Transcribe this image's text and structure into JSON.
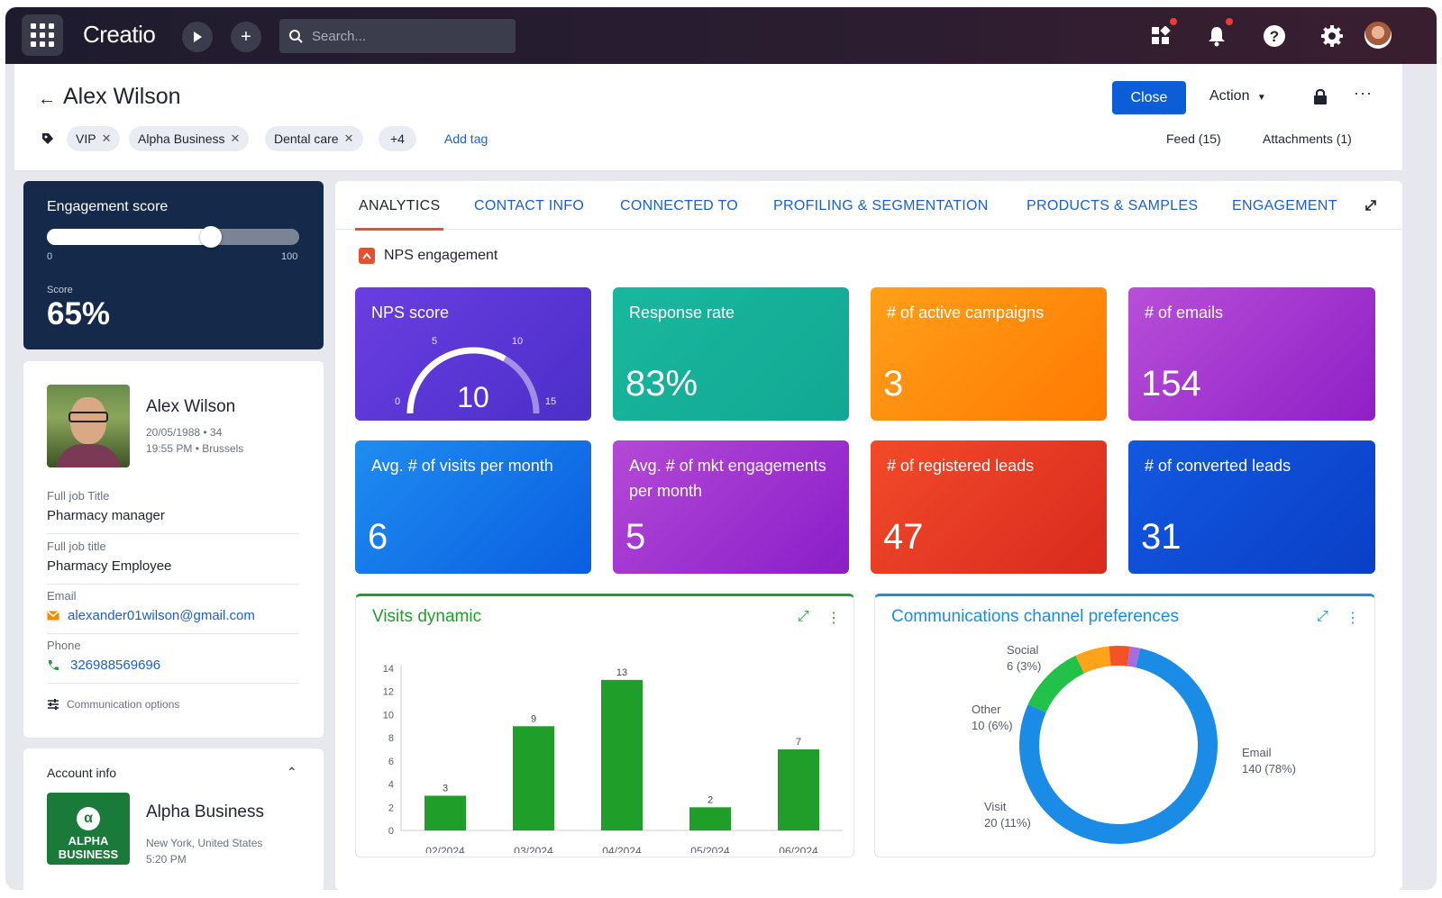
{
  "topbar": {
    "logo": "Creatio",
    "search_placeholder": "Search..."
  },
  "header": {
    "title": "Alex Wilson",
    "tags": [
      "VIP",
      "Alpha Business",
      "Dental care"
    ],
    "more_tags": "+4",
    "add_tag": "Add tag",
    "close_label": "Close",
    "action_label": "Action",
    "feed": "Feed (15)",
    "attachments": "Attachments (1)"
  },
  "engagement": {
    "label": "Engagement score",
    "min": "0",
    "max": "100",
    "score_label": "Score",
    "score": "65%",
    "score_value": 65
  },
  "contact": {
    "name": "Alex Wilson",
    "meta1": "20/05/1988 • 34",
    "meta2": "19:55 PM • Brussels",
    "fields": [
      {
        "label": "Full job Title",
        "value": "Pharmacy manager"
      },
      {
        "label": "Full job title",
        "value": "Pharmacy Employee"
      },
      {
        "label": "Email",
        "value": "alexander01wilson@gmail.com"
      },
      {
        "label": "Phone",
        "value": "326988569696"
      }
    ],
    "comm_options": "Communication options"
  },
  "account": {
    "label": "Account info",
    "name": "Alpha Business",
    "loc1": "New York, United States",
    "loc2": "5:20 PM",
    "logo_text": "ALPHA BUSINESS"
  },
  "tabs": [
    "ANALYTICS",
    "CONTACT INFO",
    "CONNECTED TO",
    "PROFILING & SEGMENTATION",
    "PRODUCTS & SAMPLES",
    "ENGAGEMENT"
  ],
  "section_title": "NPS engagement",
  "kpis": [
    {
      "title": "NPS score",
      "value": "10",
      "colors": [
        "#6a3ee0",
        "#4b2fc9"
      ]
    },
    {
      "title": "Response rate",
      "value": "83%",
      "colors": [
        "#19b79e",
        "#12a893"
      ]
    },
    {
      "title": "# of active campaigns",
      "value": "3",
      "colors": [
        "#ff9f1a",
        "#ff7a00"
      ]
    },
    {
      "title": "# of emails",
      "value": "154",
      "colors": [
        "#b84fd8",
        "#8f1fc6"
      ]
    },
    {
      "title": "Avg. # of visits per month",
      "value": "6",
      "colors": [
        "#1f8cf0",
        "#0a5ee0"
      ]
    },
    {
      "title": "Avg. # of mkt engagements per month",
      "value": "5",
      "colors": [
        "#b449d6",
        "#8a1ec9"
      ]
    },
    {
      "title": "# of registered leads",
      "value": "47",
      "colors": [
        "#f24a2a",
        "#d92a1e"
      ]
    },
    {
      "title": "# of converted leads",
      "value": "31",
      "colors": [
        "#1358e0",
        "#0a3fc7"
      ]
    }
  ],
  "gauge": {
    "ticks": [
      "0",
      "5",
      "10",
      "15"
    ],
    "value": 10,
    "max": 15
  },
  "visits_chart": {
    "title": "Visits dynamic"
  },
  "comm_chart": {
    "title": "Communications channel preferences"
  },
  "chart_data": [
    {
      "type": "bar",
      "title": "Visits dynamic",
      "categories": [
        "02/2024",
        "03/2024",
        "04/2024",
        "05/2024",
        "06/2024"
      ],
      "values": [
        3,
        9,
        13,
        2,
        7
      ],
      "yticks": [
        "0",
        "2",
        "4",
        "6",
        "8",
        "10",
        "12",
        "14"
      ],
      "ylim": [
        0,
        14
      ],
      "color": "#1f9e2a"
    },
    {
      "type": "pie",
      "title": "Communications channel preferences",
      "slices": [
        {
          "label": "Email",
          "detail": "140 (78%)",
          "value": 140,
          "color": "#1a8ce6"
        },
        {
          "label": "Visit",
          "detail": "20 (11%)",
          "value": 20,
          "color": "#22c24a"
        },
        {
          "label": "Other",
          "detail": "10 (6%)",
          "value": 10,
          "color": "#ffa31a"
        },
        {
          "label": "Social",
          "detail": "6 (3%)",
          "value": 6,
          "color": "#f4532a"
        },
        {
          "label": "",
          "detail": "",
          "value": 3,
          "color": "#a86ce0"
        }
      ]
    }
  ]
}
